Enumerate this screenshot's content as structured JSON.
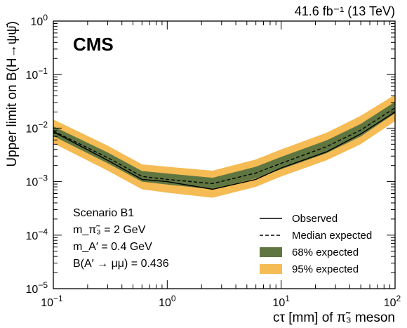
{
  "chart_data": {
    "type": "line",
    "title": "",
    "experiment_label": "CMS",
    "luminosity_label": "41.6 fb⁻¹ (13 TeV)",
    "xlabel": "cτ [mm] of π̃₃ meson",
    "ylabel": "Upper limit on B(H→ψψ̄)",
    "x_scale": "log",
    "y_scale": "log",
    "xlim": [
      0.1,
      100
    ],
    "ylim": [
      1e-05,
      1
    ],
    "x_ticks": [
      {
        "value": 0.1,
        "mantissa": "10",
        "exp": "−1"
      },
      {
        "value": 1,
        "mantissa": "10",
        "exp": "0"
      },
      {
        "value": 10,
        "mantissa": "10",
        "exp": "1"
      },
      {
        "value": 100,
        "mantissa": "10",
        "exp": "2"
      }
    ],
    "y_ticks": [
      {
        "value": 1e-05,
        "mantissa": "10",
        "exp": "−5"
      },
      {
        "value": 0.0001,
        "mantissa": "10",
        "exp": "−4"
      },
      {
        "value": 0.001,
        "mantissa": "10",
        "exp": "−3"
      },
      {
        "value": 0.01,
        "mantissa": "10",
        "exp": "−2"
      },
      {
        "value": 0.1,
        "mantissa": "10",
        "exp": "−1"
      },
      {
        "value": 1,
        "mantissa": "10",
        "exp": "0"
      }
    ],
    "x": [
      0.1,
      0.3,
      0.6,
      1.0,
      2.5,
      6.0,
      10,
      25,
      50,
      100
    ],
    "series": [
      {
        "name": "Observed",
        "style": "solid",
        "values": [
          0.0085,
          0.0025,
          0.0011,
          0.001,
          0.00072,
          0.0011,
          0.0018,
          0.0036,
          0.0078,
          0.02
        ]
      },
      {
        "name": "Median expected",
        "style": "dashed",
        "values": [
          0.0088,
          0.0028,
          0.00125,
          0.0011,
          0.00092,
          0.00145,
          0.0022,
          0.0045,
          0.0092,
          0.024
        ]
      }
    ],
    "bands": [
      {
        "name": "95% expected",
        "color": "#f5bb54",
        "low": [
          0.0052,
          0.0016,
          0.00072,
          0.00062,
          0.0005,
          0.0008,
          0.00125,
          0.0025,
          0.005,
          0.0135
        ],
        "high": [
          0.0145,
          0.0047,
          0.0021,
          0.0019,
          0.0016,
          0.0026,
          0.004,
          0.0082,
          0.017,
          0.042
        ]
      },
      {
        "name": "68% expected",
        "color": "#607641",
        "low": [
          0.0071,
          0.0022,
          0.001,
          0.00088,
          0.00072,
          0.00115,
          0.0017,
          0.0034,
          0.007,
          0.019
        ]
      },
      {
        "name": "68% expected high",
        "color": "#607641",
        "high": [
          0.0108,
          0.0035,
          0.00158,
          0.00142,
          0.00118,
          0.0019,
          0.0029,
          0.0059,
          0.012,
          0.031
        ]
      }
    ],
    "annotations": [
      "Scenario B1",
      "m_π̃₃ = 2 GeV",
      "m_A′ = 0.4 GeV",
      "B(A′ → μμ) = 0.436"
    ],
    "legend_placement": "bottom-right",
    "legend": [
      {
        "label": "Observed",
        "kind": "solid-line"
      },
      {
        "label": "Median expected",
        "kind": "dashed-line"
      },
      {
        "label": "68% expected",
        "kind": "box",
        "color": "#607641"
      },
      {
        "label": "95% expected",
        "kind": "box",
        "color": "#f5bb54"
      }
    ],
    "grid": false
  }
}
